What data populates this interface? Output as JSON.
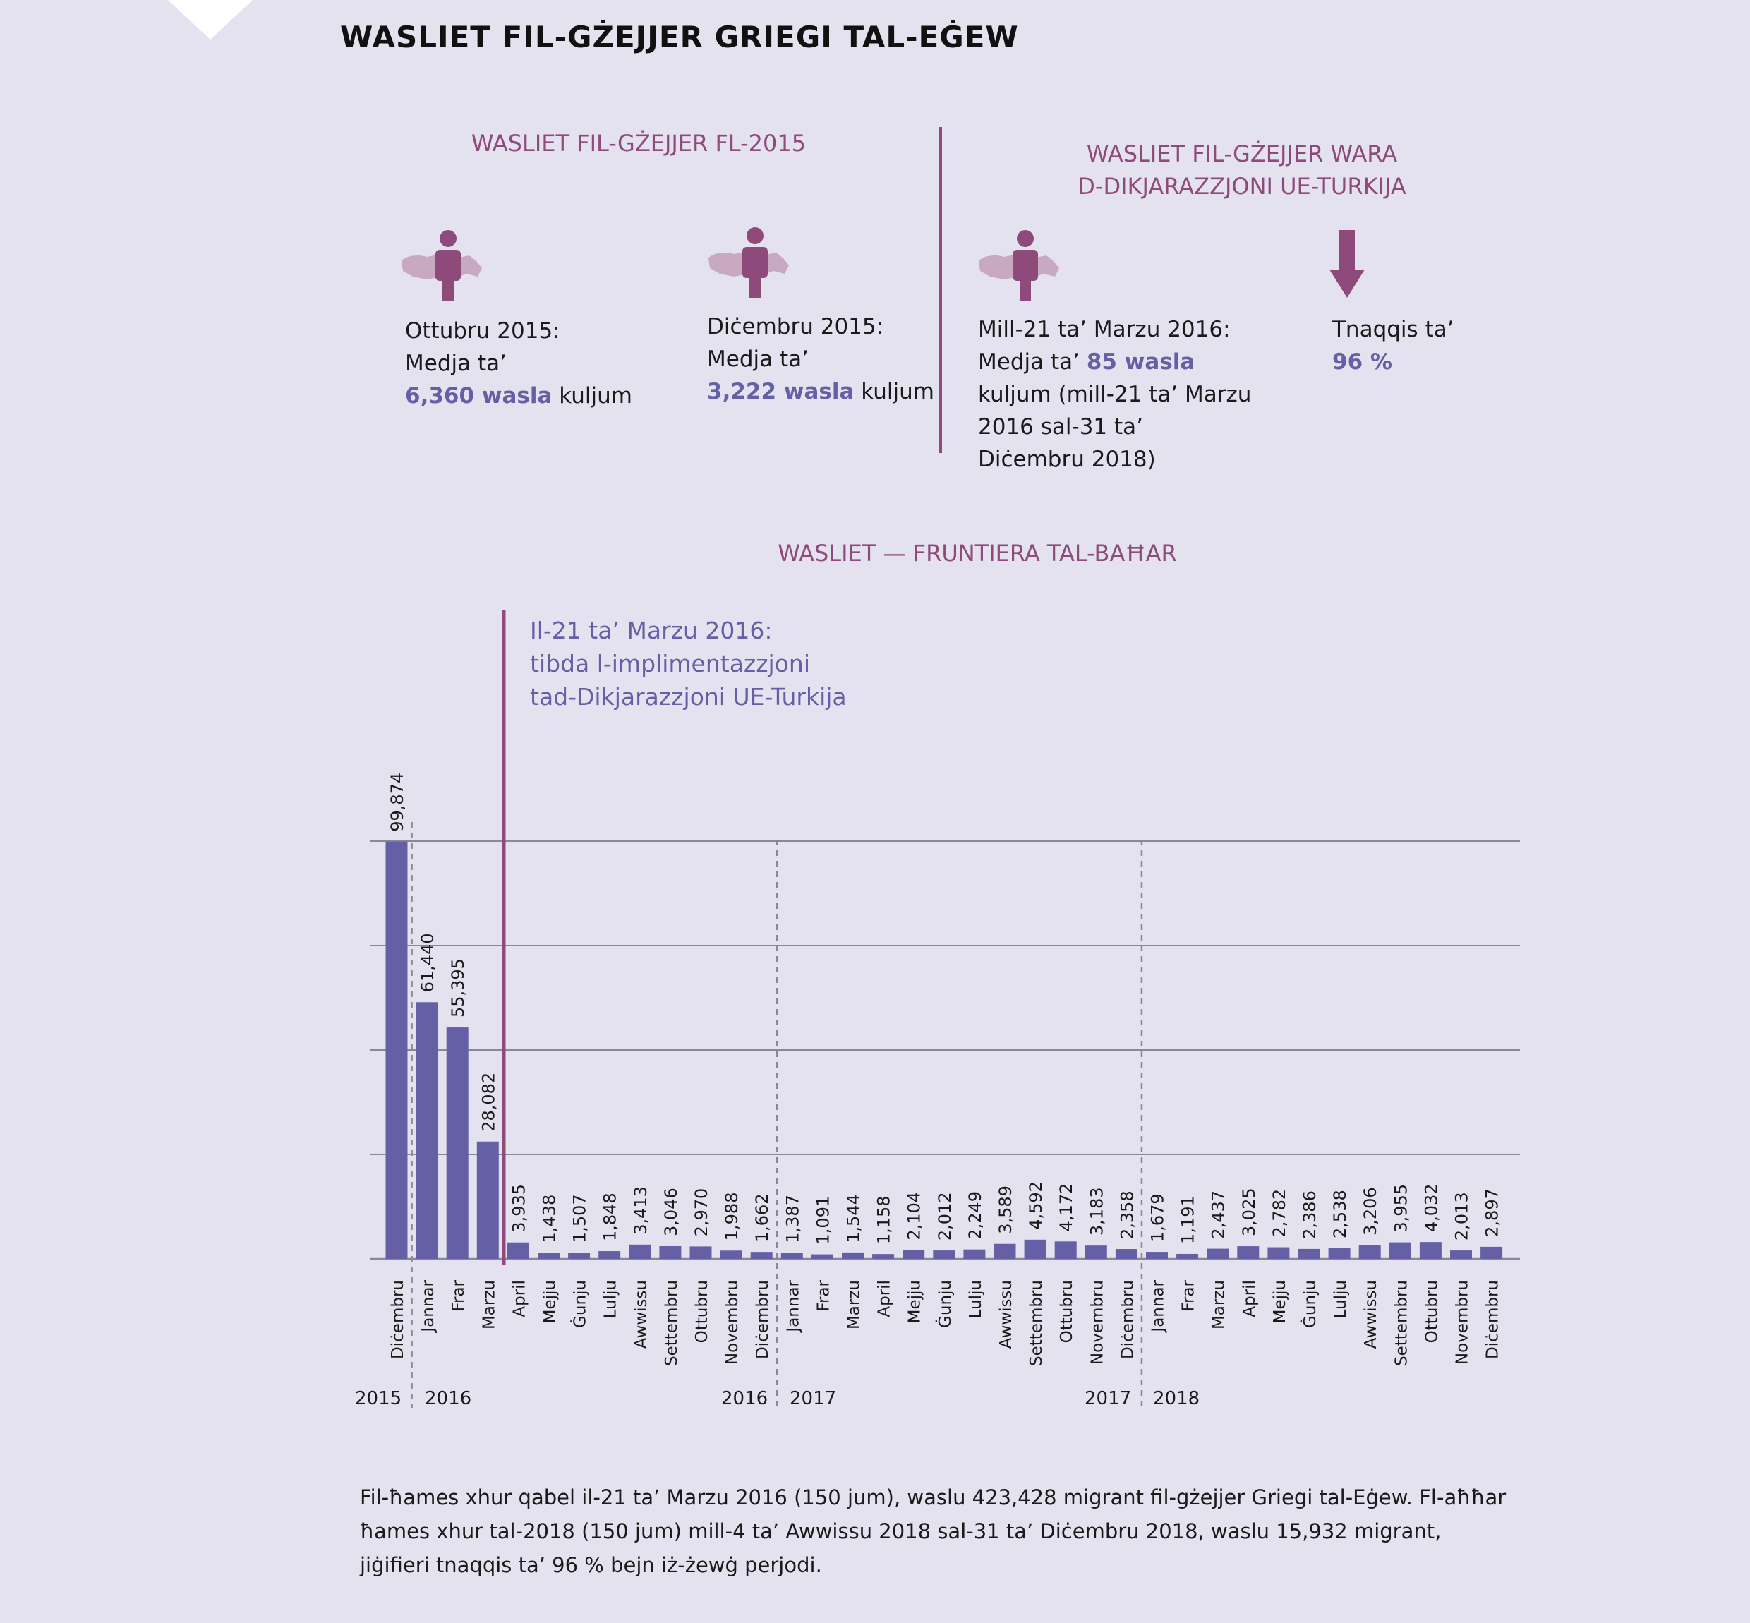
{
  "title": "WASLIET FIL-GŻEJJER GRIEGI TAL-EĠEW",
  "section_left": {
    "title": "WASLIET FIL-GŻEJJER FL-2015"
  },
  "section_right": {
    "title_line1": "WASLIET FIL-GŻEJJER WARA",
    "title_line2": "D-DIKJARAZZJONI UE-TURKIJA"
  },
  "stats": {
    "oct": {
      "line1": "Ottubru 2015:",
      "line2": "Medja ta’",
      "value": "6,360 wasla",
      "suffix": " kuljum"
    },
    "dec": {
      "line1": "Diċembru 2015:",
      "line2": "Medja ta’",
      "value": "3,222 wasla",
      "suffix": " kuljum"
    },
    "after": {
      "line1": "Mill-21 ta’ Marzu 2016:",
      "prefix": "Medja ta’ ",
      "value": "85 wasla",
      "line3": "kuljum (mill-21 ta’ Marzu",
      "line4": "2016 sal-31 ta’",
      "line5": "Diċembru 2018)"
    },
    "reduction": {
      "line1": "Tnaqqis ta’",
      "value": "96 %"
    }
  },
  "chart_data": {
    "type": "bar",
    "title": "WASLIET — FRUNTIERA TAL-BAĦAR",
    "annotation": {
      "line1": "Il-21 ta’ Marzu 2016:",
      "line2": "tibda l-implimentazzjoni",
      "line3": "tad-Dikjarazzjoni UE-Turkija"
    },
    "categories": [
      "Diċembru",
      "Jannar",
      "Frar",
      "Marzu",
      "April",
      "Mejju",
      "Ġunju",
      "Lulju",
      "Awwissu",
      "Settembru",
      "Ottubru",
      "Novembru",
      "Diċembru",
      "Jannar",
      "Frar",
      "Marzu",
      "April",
      "Mejju",
      "Ġunju",
      "Lulju",
      "Awwissu",
      "Settembru",
      "Ottubru",
      "Novembru",
      "Diċembru",
      "Jannar",
      "Frar",
      "Marzu",
      "April",
      "Mejju",
      "Ġunju",
      "Lulju",
      "Awwissu",
      "Settembru",
      "Ottubru",
      "Novembru",
      "Diċembru"
    ],
    "values": [
      99874,
      61440,
      55395,
      28082,
      3935,
      1438,
      1507,
      1848,
      3413,
      3046,
      2970,
      1988,
      1662,
      1387,
      1091,
      1544,
      1158,
      2104,
      2012,
      2249,
      3589,
      4592,
      4172,
      3183,
      2358,
      1679,
      1191,
      2437,
      3025,
      2782,
      2386,
      2538,
      3206,
      3955,
      4032,
      2013,
      2897
    ],
    "value_labels": [
      "99,874",
      "61,440",
      "55,395",
      "28,082",
      "3,935",
      "1,438",
      "1,507",
      "1,848",
      "3,413",
      "3,046",
      "2,970",
      "1,988",
      "1,662",
      "1,387",
      "1,091",
      "1,544",
      "1,158",
      "2,104",
      "2,012",
      "2,249",
      "3,589",
      "4,592",
      "4,172",
      "3,183",
      "2,358",
      "1,679",
      "1,191",
      "2,437",
      "3,025",
      "2,782",
      "2,386",
      "2,538",
      "3,206",
      "3,955",
      "4,032",
      "2,013",
      "2,897"
    ],
    "year_labels": [
      "2015",
      "2016",
      "2016",
      "2017",
      "2017",
      "2018"
    ],
    "ylim": [
      0,
      100000
    ],
    "gridlines": [
      25000,
      50000,
      75000,
      100000
    ],
    "bar_color": "#6560a5",
    "accent_color": "#8e4a7b"
  },
  "footnote": "Fil-ħames xhur qabel il-21 ta’ Marzu 2016 (150 jum), waslu 423,428 migrant fil-gżejjer Griegi tal-Eġew. Fl-aħħar ħames xhur tal-2018 (150 jum) mill-4 ta’ Awwissu 2018 sal-31 ta’ Diċembru 2018, waslu 15,932 migrant, jiġifieri tnaqqis ta’ 96 % bejn iż-żewġ perjodi."
}
